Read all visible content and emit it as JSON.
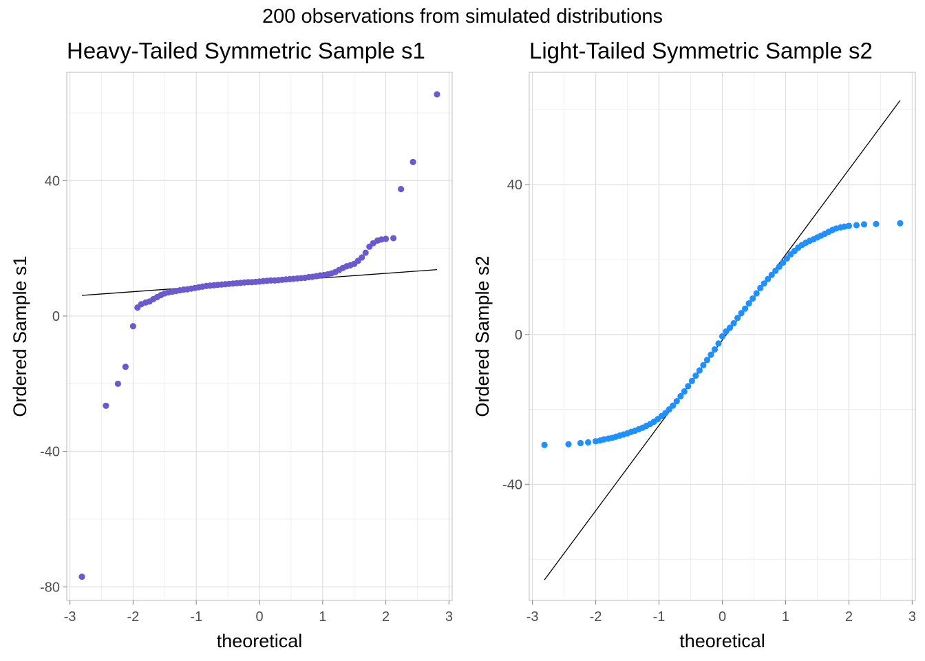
{
  "figure": {
    "title": "200 observations from simulated distributions"
  },
  "chart_data": [
    {
      "type": "scatter",
      "subtype": "qq-plot",
      "title": "Heavy-Tailed Symmetric Sample s1",
      "xlabel": "theoretical",
      "ylabel": "Ordered Sample s1",
      "xlim": [
        -3.05,
        3.05
      ],
      "ylim": [
        -84,
        72
      ],
      "xticks": [
        -3,
        -2,
        -1,
        0,
        1,
        2,
        3
      ],
      "yticks": [
        -80,
        -40,
        0,
        40
      ],
      "xtick_labels": [
        "-3",
        "-2",
        "-1",
        "0",
        "1",
        "2",
        "3"
      ],
      "ytick_labels": [
        "-80",
        "-40",
        "0",
        "40"
      ],
      "grid": true,
      "point_color": "#6a5acd",
      "reference_line": {
        "color": "#000000",
        "x": [
          -2.81,
          2.81
        ],
        "y": [
          6.1,
          13.7
        ]
      },
      "quantiles": [
        [
          -2.81,
          -77.0
        ],
        [
          -2.43,
          -26.5
        ],
        [
          -2.24,
          -20.0
        ],
        [
          -2.12,
          -15.0
        ],
        [
          -2.0,
          -3.0
        ],
        [
          -1.93,
          2.5
        ],
        [
          -1.87,
          3.5
        ],
        [
          -1.8,
          4.0
        ],
        [
          -1.74,
          4.3
        ],
        [
          -1.68,
          5.0
        ],
        [
          -1.62,
          5.6
        ],
        [
          -1.56,
          6.2
        ],
        [
          -1.5,
          6.7
        ],
        [
          -1.44,
          7.0
        ],
        [
          -1.38,
          7.2
        ],
        [
          -1.32,
          7.4
        ],
        [
          -1.26,
          7.6
        ],
        [
          -1.2,
          7.8
        ],
        [
          -1.14,
          7.9
        ],
        [
          -1.08,
          8.1
        ],
        [
          -1.02,
          8.3
        ],
        [
          -0.96,
          8.5
        ],
        [
          -0.9,
          8.7
        ],
        [
          -0.84,
          8.9
        ],
        [
          -0.78,
          9.0
        ],
        [
          -0.72,
          9.1
        ],
        [
          -0.66,
          9.2
        ],
        [
          -0.6,
          9.3
        ],
        [
          -0.54,
          9.4
        ],
        [
          -0.48,
          9.5
        ],
        [
          -0.42,
          9.6
        ],
        [
          -0.36,
          9.7
        ],
        [
          -0.3,
          9.8
        ],
        [
          -0.24,
          9.9
        ],
        [
          -0.18,
          10.0
        ],
        [
          -0.12,
          10.0
        ],
        [
          -0.06,
          10.1
        ],
        [
          0.0,
          10.2
        ],
        [
          0.06,
          10.3
        ],
        [
          0.12,
          10.4
        ],
        [
          0.18,
          10.5
        ],
        [
          0.24,
          10.5
        ],
        [
          0.3,
          10.6
        ],
        [
          0.36,
          10.7
        ],
        [
          0.42,
          10.8
        ],
        [
          0.48,
          10.9
        ],
        [
          0.54,
          11.0
        ],
        [
          0.6,
          11.1
        ],
        [
          0.66,
          11.2
        ],
        [
          0.72,
          11.3
        ],
        [
          0.78,
          11.5
        ],
        [
          0.84,
          11.6
        ],
        [
          0.9,
          11.8
        ],
        [
          0.96,
          12.0
        ],
        [
          1.02,
          12.1
        ],
        [
          1.08,
          12.3
        ],
        [
          1.14,
          12.6
        ],
        [
          1.2,
          13.0
        ],
        [
          1.26,
          13.6
        ],
        [
          1.32,
          14.2
        ],
        [
          1.38,
          14.7
        ],
        [
          1.44,
          15.0
        ],
        [
          1.5,
          15.4
        ],
        [
          1.56,
          16.3
        ],
        [
          1.62,
          17.3
        ],
        [
          1.68,
          18.7
        ],
        [
          1.74,
          20.5
        ],
        [
          1.8,
          21.5
        ],
        [
          1.87,
          22.3
        ],
        [
          1.93,
          22.6
        ],
        [
          2.0,
          22.8
        ],
        [
          2.12,
          23.0
        ],
        [
          2.24,
          37.5
        ],
        [
          2.43,
          45.5
        ],
        [
          2.81,
          65.5
        ]
      ]
    },
    {
      "type": "scatter",
      "subtype": "qq-plot",
      "title": "Light-Tailed Symmetric Sample s2",
      "xlabel": "theoretical",
      "ylabel": "Ordered Sample s2",
      "xlim": [
        -3.05,
        3.05
      ],
      "ylim": [
        -71,
        70
      ],
      "xticks": [
        -3,
        -2,
        -1,
        0,
        1,
        2,
        3
      ],
      "yticks": [
        -40,
        0,
        40
      ],
      "xtick_labels": [
        "-3",
        "-2",
        "-1",
        "0",
        "1",
        "2",
        "3"
      ],
      "ytick_labels": [
        "-40",
        "0",
        "40"
      ],
      "grid": true,
      "point_color": "#1e90ff",
      "reference_line": {
        "color": "#000000",
        "x": [
          -2.81,
          2.81
        ],
        "y": [
          -65.5,
          62.5
        ]
      },
      "quantiles": [
        [
          -2.81,
          -29.5
        ],
        [
          -2.43,
          -29.3
        ],
        [
          -2.24,
          -29.0
        ],
        [
          -2.12,
          -28.8
        ],
        [
          -2.0,
          -28.5
        ],
        [
          -1.93,
          -28.3
        ],
        [
          -1.87,
          -28.0
        ],
        [
          -1.8,
          -27.8
        ],
        [
          -1.74,
          -27.6
        ],
        [
          -1.68,
          -27.3
        ],
        [
          -1.62,
          -27.0
        ],
        [
          -1.56,
          -26.7
        ],
        [
          -1.5,
          -26.4
        ],
        [
          -1.44,
          -26.0
        ],
        [
          -1.38,
          -25.7
        ],
        [
          -1.32,
          -25.3
        ],
        [
          -1.26,
          -24.9
        ],
        [
          -1.2,
          -24.4
        ],
        [
          -1.14,
          -23.9
        ],
        [
          -1.08,
          -23.3
        ],
        [
          -1.02,
          -22.6
        ],
        [
          -0.96,
          -21.8
        ],
        [
          -0.9,
          -21.0
        ],
        [
          -0.84,
          -20.0
        ],
        [
          -0.78,
          -19.0
        ],
        [
          -0.72,
          -17.8
        ],
        [
          -0.66,
          -16.5
        ],
        [
          -0.6,
          -15.2
        ],
        [
          -0.54,
          -13.8
        ],
        [
          -0.48,
          -12.4
        ],
        [
          -0.42,
          -11.0
        ],
        [
          -0.36,
          -9.6
        ],
        [
          -0.3,
          -8.2
        ],
        [
          -0.24,
          -6.8
        ],
        [
          -0.18,
          -5.4
        ],
        [
          -0.12,
          -4.0
        ],
        [
          -0.06,
          -2.4
        ],
        [
          0.0,
          -0.5
        ],
        [
          0.06,
          0.8
        ],
        [
          0.12,
          1.8
        ],
        [
          0.18,
          3.0
        ],
        [
          0.24,
          4.4
        ],
        [
          0.3,
          5.7
        ],
        [
          0.36,
          6.9
        ],
        [
          0.42,
          8.3
        ],
        [
          0.48,
          9.6
        ],
        [
          0.54,
          11.0
        ],
        [
          0.6,
          12.4
        ],
        [
          0.66,
          13.6
        ],
        [
          0.72,
          14.8
        ],
        [
          0.78,
          15.9
        ],
        [
          0.84,
          17.0
        ],
        [
          0.9,
          18.1
        ],
        [
          0.96,
          19.2
        ],
        [
          1.02,
          20.3
        ],
        [
          1.08,
          21.4
        ],
        [
          1.14,
          22.3
        ],
        [
          1.2,
          23.2
        ],
        [
          1.26,
          23.9
        ],
        [
          1.32,
          24.5
        ],
        [
          1.38,
          25.0
        ],
        [
          1.44,
          25.4
        ],
        [
          1.5,
          25.9
        ],
        [
          1.56,
          26.4
        ],
        [
          1.62,
          26.9
        ],
        [
          1.68,
          27.4
        ],
        [
          1.74,
          27.9
        ],
        [
          1.8,
          28.3
        ],
        [
          1.87,
          28.6
        ],
        [
          1.93,
          28.8
        ],
        [
          2.0,
          29.0
        ],
        [
          2.12,
          29.2
        ],
        [
          2.24,
          29.4
        ],
        [
          2.43,
          29.5
        ],
        [
          2.81,
          29.7
        ]
      ]
    }
  ]
}
